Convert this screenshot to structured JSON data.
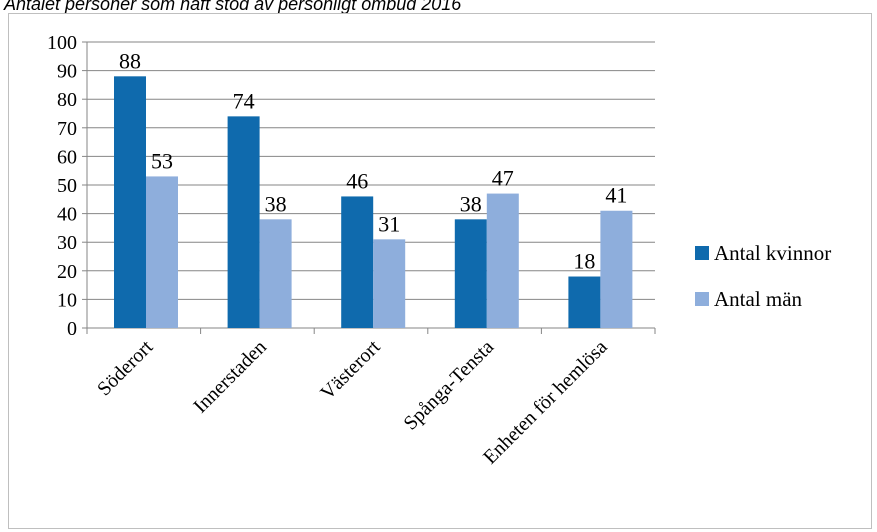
{
  "title": "Antalet personer som haft stöd av personligt ombud 2016",
  "chart_data": {
    "type": "bar",
    "title": "Antalet personer som haft stöd av personligt ombud 2016",
    "categories": [
      "Söderort",
      "Innerstaden",
      "Västerort",
      "Spånga-Tensta",
      "Enheten för hemlösa"
    ],
    "series": [
      {
        "name": "Antal kvinnor",
        "values": [
          88,
          74,
          46,
          38,
          18
        ],
        "color": "#0f6aad"
      },
      {
        "name": "Antal män",
        "values": [
          53,
          38,
          31,
          47,
          41
        ],
        "color": "#8eaedc"
      }
    ],
    "ylim": [
      0,
      100
    ],
    "yticks": [
      "0",
      "10",
      "20",
      "30",
      "40",
      "50",
      "60",
      "70",
      "80",
      "90",
      "100"
    ],
    "xlabel": "",
    "ylabel": "",
    "grid": true,
    "legend": "right",
    "gridline_color": "#868686"
  }
}
